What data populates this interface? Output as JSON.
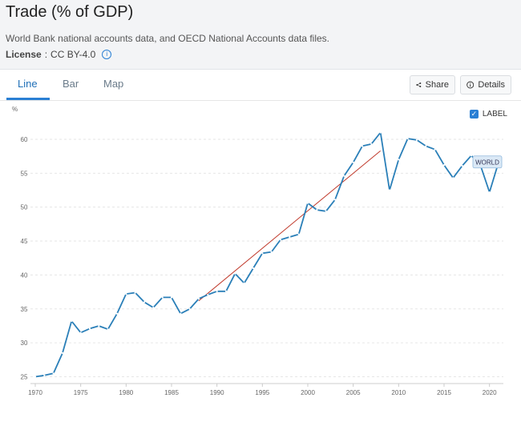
{
  "page": {
    "title": "Trade (% of GDP)",
    "source": "World Bank national accounts data, and OECD National Accounts data files.",
    "license_label": "License",
    "license_sep": " : ",
    "license_value": "CC BY-4.0",
    "info_icon_glyph": "i"
  },
  "tabs": [
    {
      "label": "Line",
      "active": true
    },
    {
      "label": "Bar",
      "active": false
    },
    {
      "label": "Map",
      "active": false
    }
  ],
  "toolbar": {
    "share_label": "Share",
    "details_label": "Details"
  },
  "label_toggle": {
    "label": "LABEL",
    "checked": true,
    "check_glyph": "✓"
  },
  "colors": {
    "line": "#2a7fb8",
    "trend": "#c0392b",
    "accent": "#2a7fd4"
  },
  "chart_data": {
    "type": "line",
    "ylabel": "%",
    "x_ticks": [
      1970,
      1975,
      1980,
      1985,
      1990,
      1995,
      2000,
      2005,
      2010,
      2015,
      2020
    ],
    "y_ticks": [
      25,
      30,
      35,
      40,
      45,
      50,
      55,
      60
    ],
    "xlim": [
      1970,
      2021
    ],
    "ylim": [
      24,
      62
    ],
    "grid": true,
    "series": [
      {
        "name": "WORLD",
        "x": [
          1970,
          1971,
          1972,
          1973,
          1974,
          1975,
          1976,
          1977,
          1978,
          1979,
          1980,
          1981,
          1982,
          1983,
          1984,
          1985,
          1986,
          1987,
          1988,
          1989,
          1990,
          1991,
          1992,
          1993,
          1994,
          1995,
          1996,
          1997,
          1998,
          1999,
          2000,
          2001,
          2002,
          2003,
          2004,
          2005,
          2006,
          2007,
          2008,
          2009,
          2010,
          2011,
          2012,
          2013,
          2014,
          2015,
          2016,
          2017,
          2018,
          2019,
          2020,
          2021
        ],
        "values": [
          25.0,
          25.2,
          25.5,
          28.5,
          33.2,
          31.5,
          32.1,
          32.5,
          32.0,
          34.3,
          37.2,
          37.4,
          36.0,
          35.2,
          36.7,
          36.7,
          34.3,
          35.0,
          36.5,
          37.1,
          37.6,
          37.6,
          40.2,
          38.8,
          41.0,
          43.2,
          43.4,
          45.2,
          45.6,
          46.0,
          50.6,
          49.6,
          49.4,
          51.1,
          54.6,
          56.6,
          59.0,
          59.3,
          61.0,
          52.5,
          57.0,
          60.1,
          59.9,
          59.0,
          58.5,
          56.2,
          54.3,
          56.1,
          57.6,
          56.2,
          52.2,
          56.6
        ]
      }
    ],
    "trend_line": {
      "x": [
        1988,
        2008
      ],
      "y": [
        36.2,
        58.3
      ]
    },
    "end_label": "WORLD"
  }
}
